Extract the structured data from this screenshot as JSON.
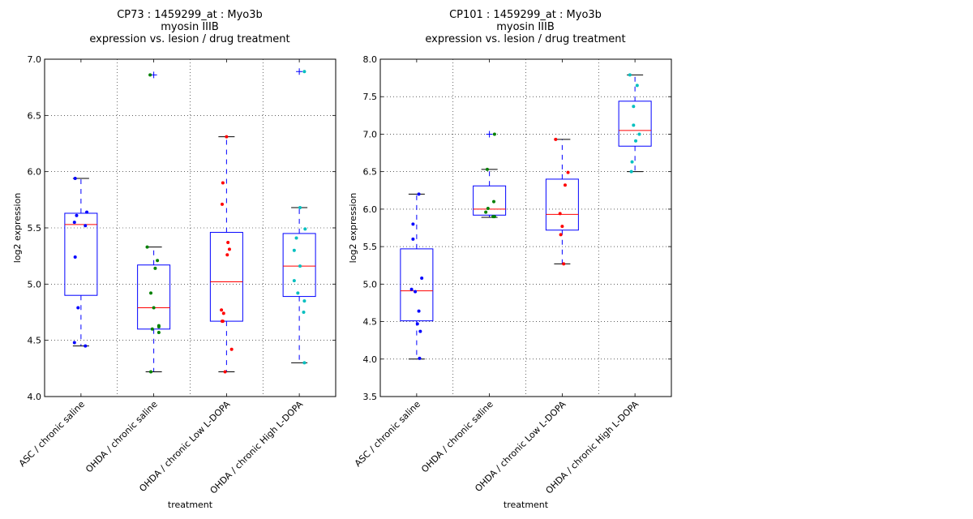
{
  "chart_data": [
    {
      "type": "box",
      "title": [
        "CP73 : 1459299_at : Myo3b",
        "myosin IIIB",
        "expression vs. lesion / drug treatment"
      ],
      "xlabel": "treatment",
      "ylabel": "log2 expression",
      "ylim": [
        4.0,
        7.0
      ],
      "yticks": [
        "4.0",
        "4.5",
        "5.0",
        "5.5",
        "6.0",
        "6.5",
        "7.0"
      ],
      "grid": true,
      "categories": [
        "ASC / chronic saline",
        "OHDA / chronic saline",
        "OHDA / chronic Low L-DOPA",
        "OHDA / chronic High L-DOPA"
      ],
      "groups": [
        {
          "color": "#0000ff",
          "q1": 4.9,
          "median": 5.53,
          "q3": 5.63,
          "whisker_low": 4.45,
          "whisker_high": 5.94,
          "outliers": [],
          "points": [
            5.94,
            5.64,
            5.61,
            5.55,
            5.52,
            5.24,
            4.79,
            4.48,
            4.45
          ],
          "jitter": [
            -0.08,
            0.08,
            -0.06,
            -0.09,
            0.06,
            -0.08,
            -0.04,
            -0.09,
            0.06
          ]
        },
        {
          "color": "#008000",
          "q1": 4.6,
          "median": 4.79,
          "q3": 5.17,
          "whisker_low": 4.22,
          "whisker_high": 5.33,
          "outliers": [
            6.86
          ],
          "points": [
            6.86,
            5.33,
            5.21,
            5.14,
            4.92,
            4.79,
            4.63,
            4.62,
            4.6,
            4.57,
            4.22
          ],
          "jitter": [
            -0.05,
            -0.09,
            0.05,
            0.02,
            -0.04,
            0.0,
            0.07,
            0.07,
            -0.02,
            0.07,
            -0.04
          ]
        },
        {
          "color": "#ff0000",
          "q1": 4.67,
          "median": 5.02,
          "q3": 5.46,
          "whisker_low": 4.22,
          "whisker_high": 6.31,
          "outliers": [],
          "points": [
            6.31,
            5.9,
            5.71,
            5.37,
            5.31,
            5.26,
            4.77,
            4.74,
            4.67,
            4.67,
            4.42,
            4.22
          ],
          "jitter": [
            0.0,
            -0.05,
            -0.06,
            0.02,
            0.04,
            0.01,
            -0.07,
            -0.04,
            -0.06,
            -0.05,
            0.07,
            -0.02
          ]
        },
        {
          "color": "#00bfbf",
          "q1": 4.89,
          "median": 5.16,
          "q3": 5.45,
          "whisker_low": 4.3,
          "whisker_high": 5.68,
          "outliers": [
            6.89
          ],
          "points": [
            6.89,
            5.68,
            5.49,
            5.41,
            5.3,
            5.16,
            5.03,
            4.92,
            4.85,
            4.75,
            4.3
          ],
          "jitter": [
            0.07,
            0.01,
            0.08,
            -0.04,
            -0.07,
            0.01,
            -0.07,
            -0.02,
            0.07,
            0.06,
            0.07
          ]
        }
      ]
    },
    {
      "type": "box",
      "title": [
        "CP101 : 1459299_at : Myo3b",
        "myosin IIIB",
        "expression vs. lesion / drug treatment"
      ],
      "xlabel": "treatment",
      "ylabel": "log2 expression",
      "ylim": [
        3.5,
        8.0
      ],
      "yticks": [
        "3.5",
        "4.0",
        "4.5",
        "5.0",
        "5.5",
        "6.0",
        "6.5",
        "7.0",
        "7.5",
        "8.0"
      ],
      "grid": true,
      "categories": [
        "ASC / chronic saline",
        "OHDA / chronic saline",
        "OHDA / chronic Low L-DOPA",
        "OHDA / chronic High L-DOPA"
      ],
      "groups": [
        {
          "color": "#0000ff",
          "q1": 4.51,
          "median": 4.91,
          "q3": 5.47,
          "whisker_low": 4.0,
          "whisker_high": 6.2,
          "outliers": [],
          "points": [
            6.2,
            5.8,
            5.6,
            5.08,
            4.93,
            4.9,
            4.64,
            4.47,
            4.37,
            4.01
          ],
          "jitter": [
            0.03,
            -0.05,
            -0.05,
            0.07,
            -0.07,
            -0.02,
            0.03,
            0.01,
            0.05,
            0.04
          ]
        },
        {
          "color": "#008000",
          "q1": 5.92,
          "median": 6.0,
          "q3": 6.31,
          "whisker_low": 5.89,
          "whisker_high": 6.53,
          "outliers": [
            7.0
          ],
          "points": [
            7.0,
            6.53,
            6.1,
            6.01,
            5.96,
            5.9,
            5.9
          ],
          "jitter": [
            0.07,
            -0.03,
            0.06,
            -0.02,
            -0.05,
            0.05,
            0.07
          ]
        },
        {
          "color": "#ff0000",
          "q1": 5.72,
          "median": 5.93,
          "q3": 6.4,
          "whisker_low": 5.27,
          "whisker_high": 6.93,
          "outliers": [],
          "points": [
            6.93,
            6.49,
            6.32,
            5.94,
            5.77,
            5.66,
            5.27
          ],
          "jitter": [
            -0.09,
            0.08,
            0.04,
            -0.03,
            0.0,
            -0.02,
            0.02
          ]
        },
        {
          "color": "#00bfbf",
          "q1": 6.84,
          "median": 7.05,
          "q3": 7.44,
          "whisker_low": 6.5,
          "whisker_high": 7.79,
          "outliers": [],
          "points": [
            7.79,
            7.65,
            7.37,
            7.12,
            7.0,
            6.91,
            6.63,
            6.5
          ],
          "jitter": [
            -0.07,
            0.03,
            -0.02,
            -0.02,
            0.06,
            0.01,
            -0.04,
            -0.05
          ]
        }
      ]
    }
  ]
}
